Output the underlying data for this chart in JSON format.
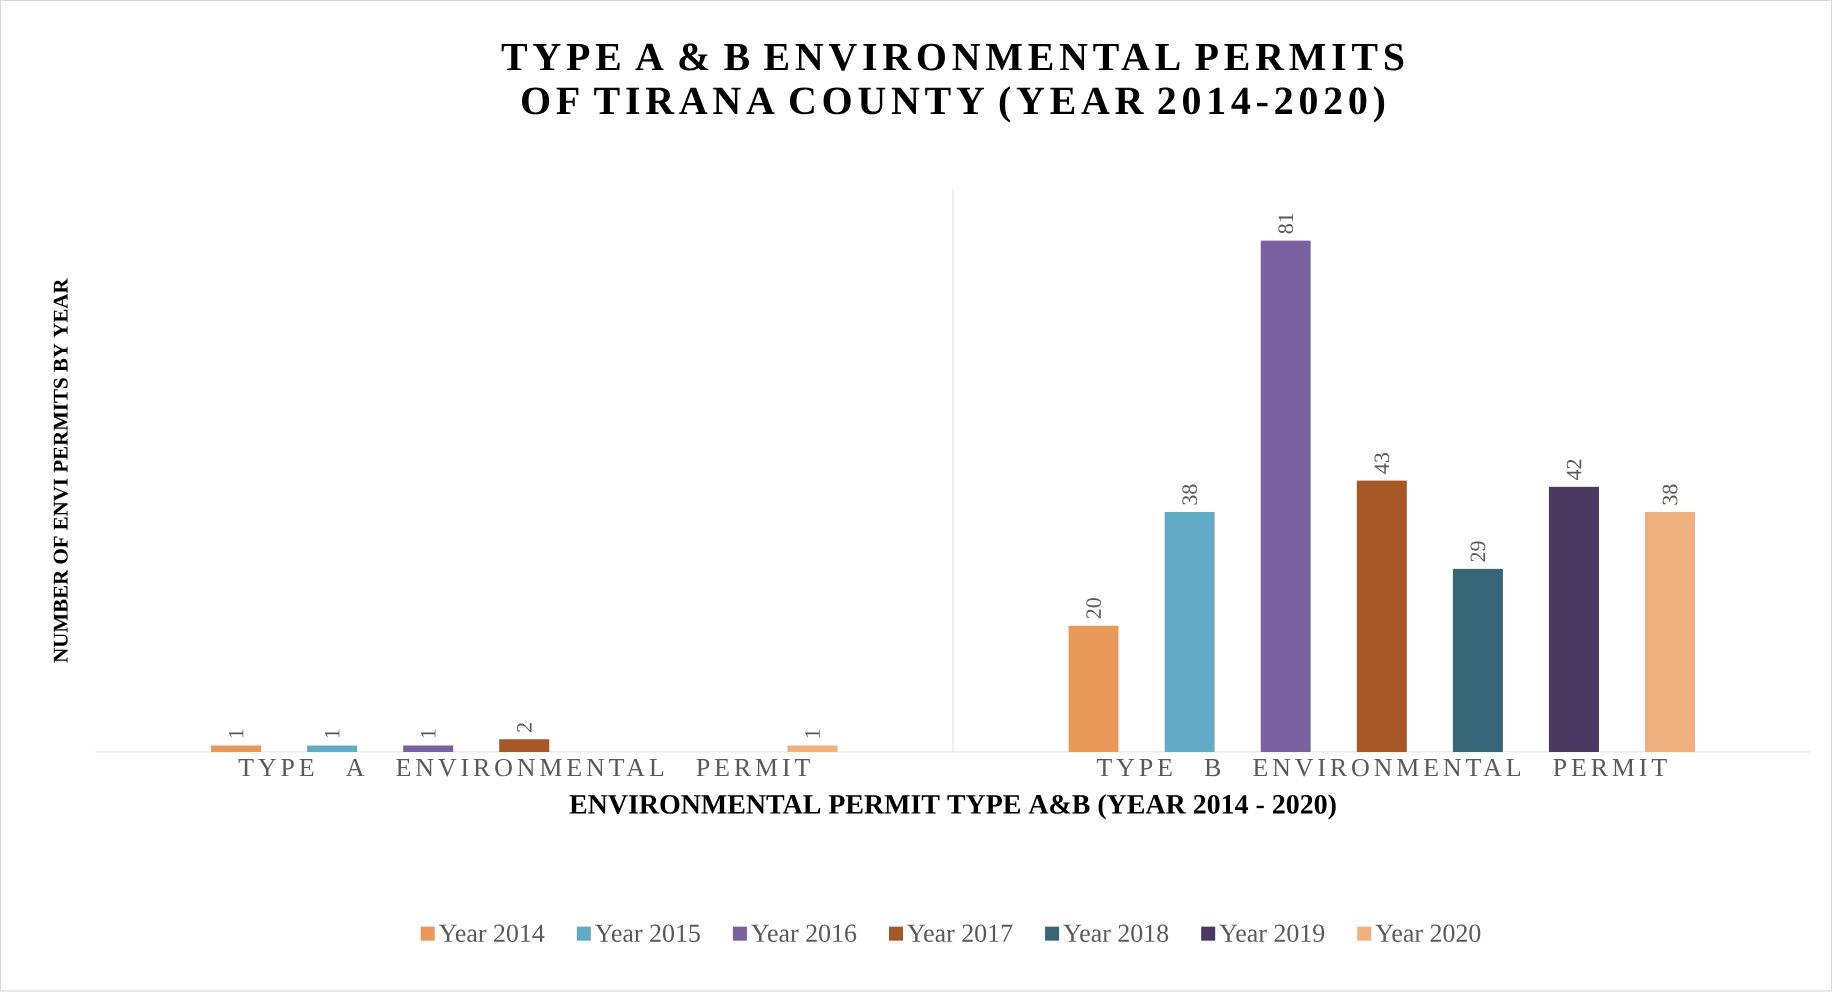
{
  "chart_data": {
    "type": "bar",
    "title": "TYPE A & B ENVIRONMENTAL PERMITS OF TIRANA COUNTY (YEAR 2014-2020)",
    "xlabel": "ENVIRONMENTAL PERMIT TYPE A&B (YEAR 2014 - 2020)",
    "ylabel": "NUMBER OF ENVI PERMITS BY YEAR",
    "categories": [
      "TYPE A ENVIRONMENTAL PERMIT",
      "TYPE B ENVIRONMENTAL PERMIT"
    ],
    "series": [
      {
        "name": "Year 2014",
        "color": "#e8995a",
        "values": [
          1,
          20
        ]
      },
      {
        "name": "Year 2015",
        "color": "#62abc5",
        "values": [
          1,
          38
        ]
      },
      {
        "name": "Year 2016",
        "color": "#7a62a0",
        "values": [
          1,
          81
        ]
      },
      {
        "name": "Year 2017",
        "color": "#a65726",
        "values": [
          2,
          43
        ]
      },
      {
        "name": "Year 2018",
        "color": "#376677",
        "values": [
          null,
          29
        ]
      },
      {
        "name": "Year 2019",
        "color": "#4b3a5f",
        "values": [
          null,
          42
        ]
      },
      {
        "name": "Year 2020",
        "color": "#f0b07d",
        "values": [
          1,
          38
        ]
      }
    ],
    "data_labels": true,
    "legend": "bottom"
  }
}
